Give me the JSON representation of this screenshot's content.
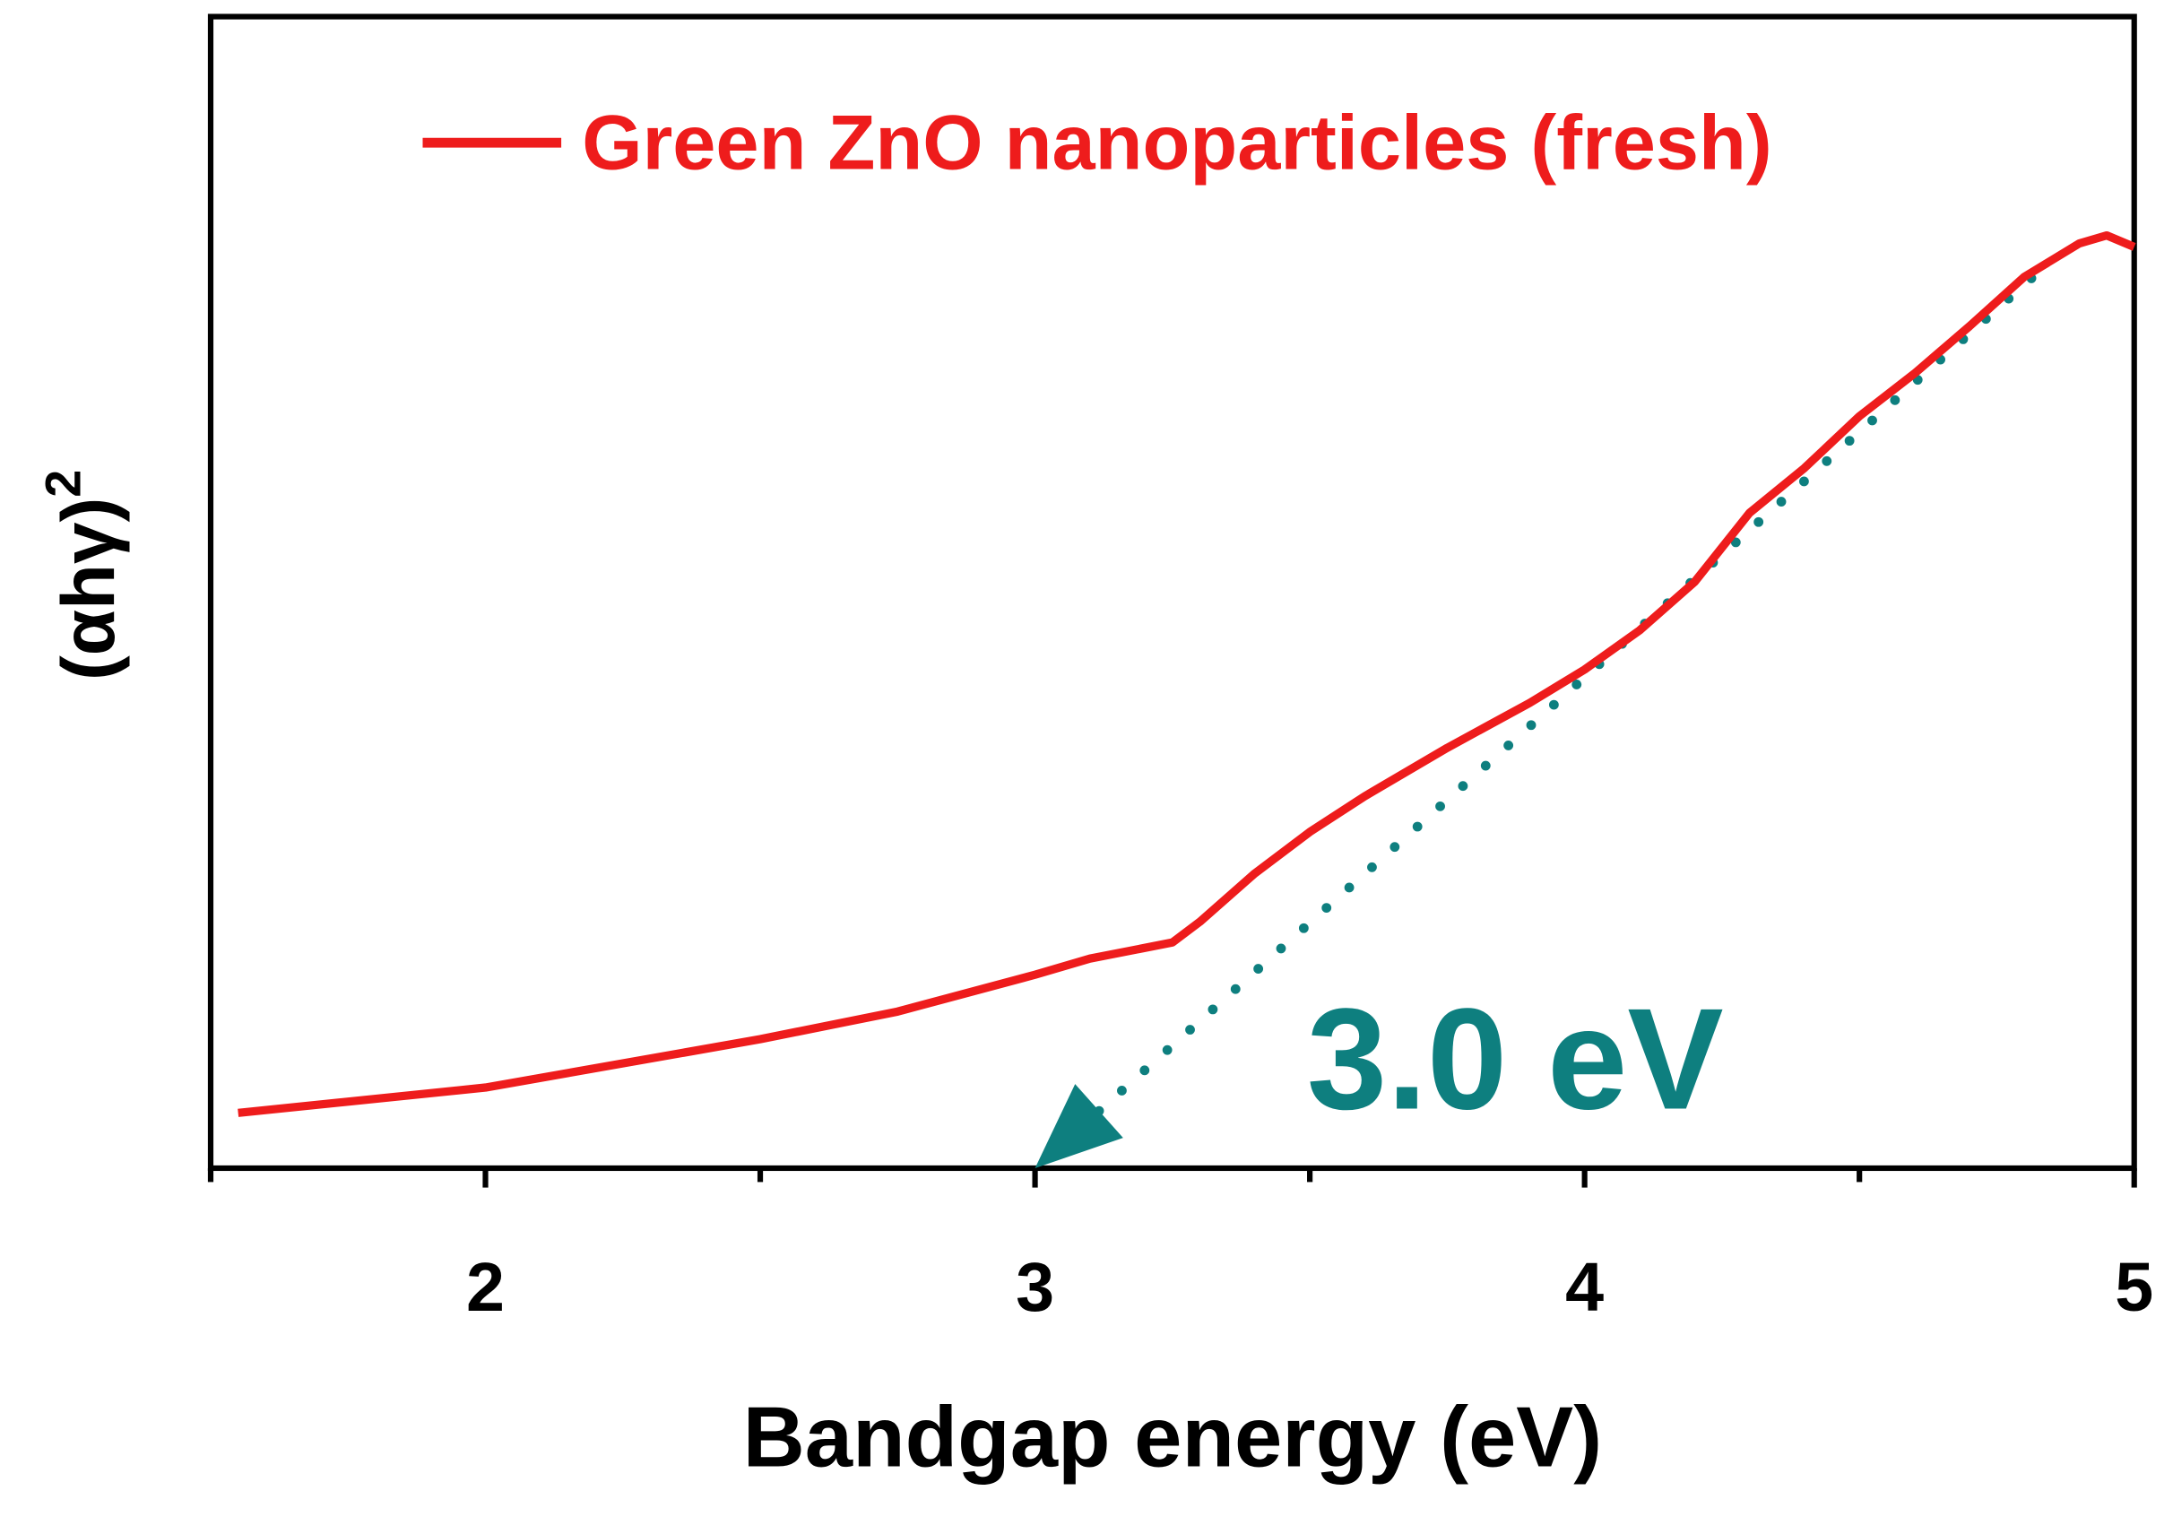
{
  "chart_data": {
    "type": "line",
    "xlabel": "Bandgap energy (eV)",
    "ylabel": "(αhγ)",
    "ylabel_superscript": "2",
    "xlim": [
      1.5,
      5
    ],
    "xticks": [
      2,
      3,
      4,
      5
    ],
    "minor_xticks": [
      1.5,
      2.5,
      3.5,
      4.5
    ],
    "ylim": [
      0,
      100
    ],
    "legend": "top",
    "series": [
      {
        "name": "Green ZnO nanoparticles (fresh)",
        "color": "#ee1c1c",
        "x": [
          1.55,
          2.0,
          2.5,
          2.75,
          3.0,
          3.1,
          3.25,
          3.3,
          3.4,
          3.5,
          3.6,
          3.75,
          3.9,
          4.0,
          4.1,
          4.2,
          4.3,
          4.4,
          4.5,
          4.6,
          4.7,
          4.8,
          4.9,
          4.95,
          5.0
        ],
        "values": [
          4.8,
          7.0,
          11.2,
          13.6,
          16.8,
          18.2,
          19.6,
          21.4,
          25.6,
          29.2,
          32.3,
          36.5,
          40.4,
          43.3,
          46.7,
          50.9,
          56.9,
          60.8,
          65.3,
          69.0,
          73.1,
          77.4,
          80.3,
          81.0,
          80.0
        ]
      }
    ],
    "fit_line": {
      "color": "#0e7f7f",
      "x": [
        3.0,
        4.83
      ],
      "values": [
        0,
        78
      ]
    },
    "annotation": {
      "text": "3.0 eV",
      "color": "#0e7f7f"
    }
  }
}
